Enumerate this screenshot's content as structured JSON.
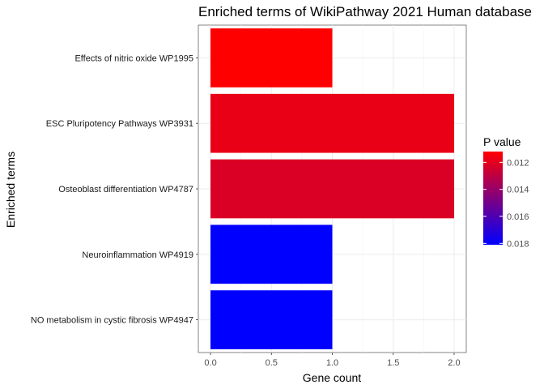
{
  "chart_data": {
    "type": "bar",
    "orientation": "horizontal",
    "title": "Enriched terms of WikiPathway 2021 Human database",
    "xlabel": "Gene count",
    "ylabel": "Enriched terms",
    "xlim": [
      -0.1,
      2.1
    ],
    "xticks": [
      "0.0",
      "0.5",
      "1.0",
      "1.5",
      "2.0"
    ],
    "categories": [
      "Effects of nitric oxide WP1995",
      "ESC Pluripotency Pathways WP3931",
      "Osteoblast differentiation WP4787",
      "Neuroinflammation WP4919",
      "NO metabolism in cystic fibrosis WP4947"
    ],
    "values": [
      1,
      2,
      2,
      1,
      1
    ],
    "p_values": [
      0.0112,
      0.0118,
      0.0122,
      0.0181,
      0.0181
    ],
    "grid": true,
    "legend": {
      "title": "P value",
      "placement": "right",
      "ticks": [
        "0.012",
        "0.014",
        "0.016",
        "0.018"
      ],
      "tick_values": [
        0.012,
        0.014,
        0.016,
        0.018
      ],
      "range": [
        0.0112,
        0.0181
      ],
      "color_low": "#ff0000",
      "color_high": "#0000ff"
    }
  }
}
